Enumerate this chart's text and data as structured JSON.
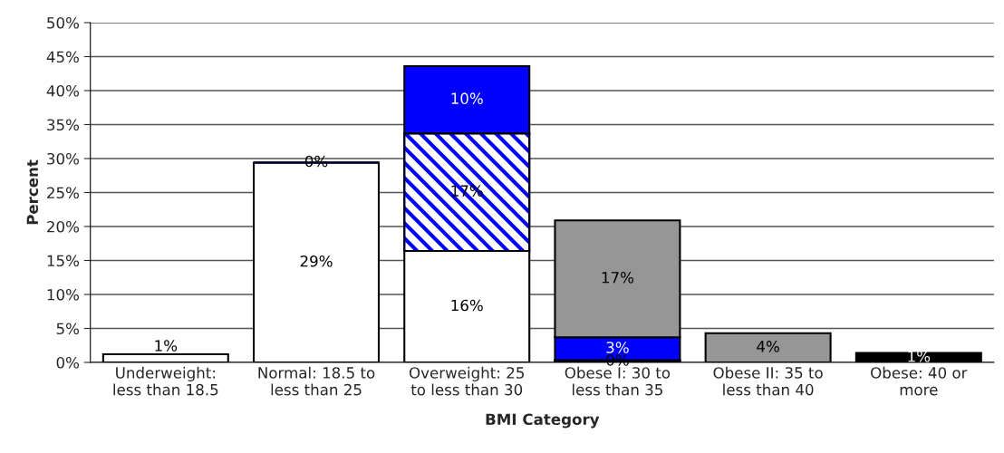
{
  "chart_data": {
    "type": "bar",
    "stacked": true,
    "xlabel": "BMI Category",
    "ylabel": "Percent",
    "categories": [
      "Underweight:\nless than 18.5",
      "Normal: 18.5 to\nless than 25",
      "Overweight: 25\nto less than 30",
      "Obese I: 30 to\nless than 35",
      "Obese II: 35 to\nless than 40",
      "Obese: 40 or\nmore"
    ],
    "series": [
      {
        "color": "#ffffff",
        "values": [
          1.2,
          29.4,
          16.4,
          null,
          null,
          null
        ],
        "value_labels": [
          "1%",
          "29%",
          "16%",
          null,
          null,
          null
        ]
      },
      {
        "color": "#0000ff",
        "values": [
          null,
          0,
          17.3,
          0.3,
          null,
          null
        ],
        "value_labels": [
          null,
          "0%",
          "17%",
          "0%",
          null,
          null
        ]
      },
      {
        "color": "#0000ff",
        "values": [
          null,
          null,
          9.9,
          3.4,
          null,
          null
        ],
        "value_labels": [
          null,
          null,
          "10%",
          "3%",
          null,
          null
        ]
      },
      {
        "color": "#969696",
        "values": [
          null,
          null,
          null,
          17.2,
          4.3,
          null
        ],
        "value_labels": [
          null,
          null,
          null,
          "17%",
          "4%",
          null
        ]
      },
      {
        "color": "#000000",
        "values": [
          null,
          null,
          null,
          null,
          null,
          1.4
        ],
        "value_labels": [
          null,
          null,
          null,
          null,
          null,
          "1%"
        ]
      }
    ],
    "ylim": [
      0,
      50
    ],
    "yticks": [
      {
        "value": 0,
        "label": "0%"
      },
      {
        "value": 5,
        "label": "5%"
      },
      {
        "value": 10,
        "label": "10%"
      },
      {
        "value": 15,
        "label": "15%"
      },
      {
        "value": 20,
        "label": "20%"
      },
      {
        "value": 25,
        "label": "25%"
      },
      {
        "value": 30,
        "label": "30%"
      },
      {
        "value": 35,
        "label": "35%"
      },
      {
        "value": 40,
        "label": "40%"
      },
      {
        "value": 45,
        "label": "45%"
      },
      {
        "value": 50,
        "label": "50%"
      }
    ],
    "grid": "y",
    "legend": false
  }
}
